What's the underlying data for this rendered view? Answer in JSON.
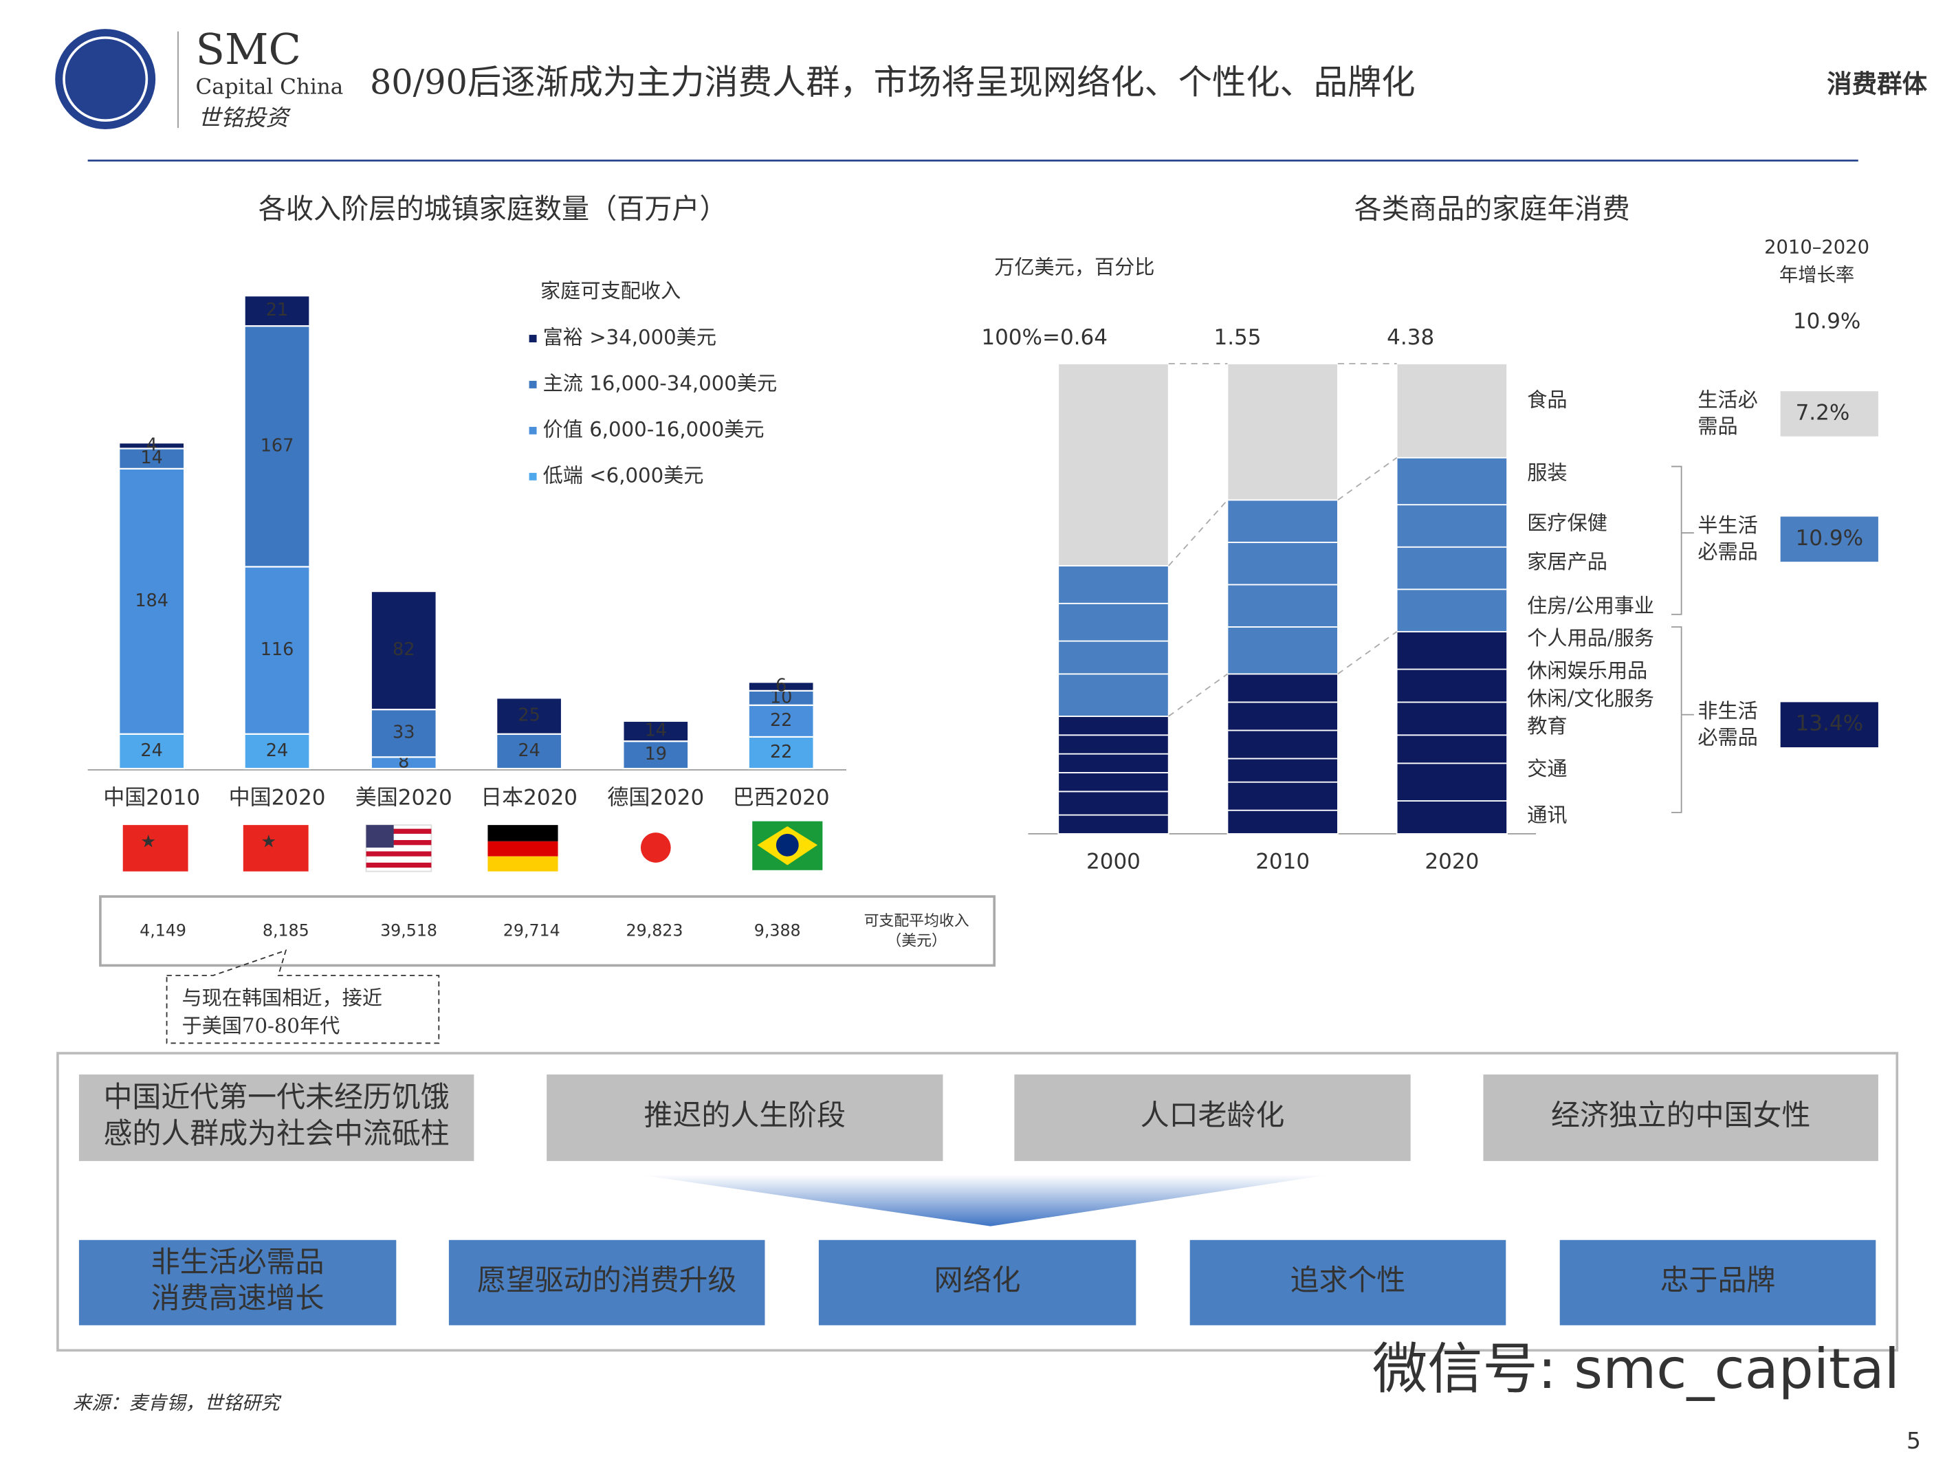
{
  "header": {
    "logo_name": "SMC",
    "logo_sub": "Capital China",
    "logo_cn": "世铭投资",
    "title": "80/90后逐渐成为主力消费人群，市场将呈现网络化、个性化、品牌化",
    "section": "消费群体"
  },
  "chart_data": [
    {
      "type": "stacked_bar",
      "title": "各收入阶层的城镇家庭数量（百万户）",
      "legend_title": "家庭可支配收入",
      "categories": [
        "中国2010",
        "中国2020",
        "美国2020",
        "日本2020",
        "德国2020",
        "巴西2020"
      ],
      "series": [
        {
          "name": "低端 <6,000美元",
          "color": "#4fa8ec",
          "values": [
            24,
            24,
            null,
            null,
            null,
            22
          ]
        },
        {
          "name": "价值 6,000-16,000美元",
          "color": "#4a8fdc",
          "values": [
            184,
            116,
            8,
            null,
            null,
            22
          ]
        },
        {
          "name": "主流 16,000-34,000美元",
          "color": "#3d77c0",
          "values": [
            14,
            167,
            33,
            24,
            19,
            10
          ]
        },
        {
          "name": "富裕 >34,000美元",
          "color": "#0f1f63",
          "values": [
            4,
            21,
            82,
            25,
            14,
            6
          ]
        }
      ],
      "ylim": [
        0,
        340
      ],
      "income_title": [
        "可支配平均收入",
        "（美元）"
      ],
      "incomes": [
        "4,149",
        "8,185",
        "39,518",
        "29,714",
        "29,823",
        "9,388"
      ],
      "annotation": [
        "与现在韩国相近，接近",
        "于美国70-80年代"
      ]
    },
    {
      "type": "stacked_bar_100",
      "title": "各类商品的家庭年消费",
      "unit": "万亿美元，百分比",
      "categories": [
        "2000",
        "2010",
        "2020"
      ],
      "totals": [
        "100%=0.64",
        "1.55",
        "4.38"
      ],
      "series": [
        {
          "name": "食品",
          "color": "#d9d9d9",
          "values": [
            43,
            29,
            20
          ]
        },
        {
          "name": "服装",
          "color": "#4a7fc1",
          "values": [
            8,
            9,
            10
          ]
        },
        {
          "name": "医疗保健",
          "color": "#4a7fc1",
          "values": [
            8,
            9,
            9
          ]
        },
        {
          "name": "家居产品",
          "color": "#4a7fc1",
          "values": [
            7,
            9,
            9
          ]
        },
        {
          "name": "住房/公用事业",
          "color": "#4a7fc1",
          "values": [
            9,
            10,
            9
          ]
        },
        {
          "name": "个人用品/服务",
          "color": "#0d1b5e",
          "values": [
            4,
            6,
            8
          ]
        },
        {
          "name": "休闲娱乐用品",
          "color": "#0d1b5e",
          "values": [
            4,
            6,
            7
          ]
        },
        {
          "name": "休闲/文化服务",
          "color": "#0d1b5e",
          "values": [
            4,
            6,
            7
          ]
        },
        {
          "name": "教育",
          "color": "#0d1b5e",
          "values": [
            4,
            5,
            6
          ]
        },
        {
          "name": "交通",
          "color": "#0d1b5e",
          "values": [
            5,
            6,
            8
          ]
        },
        {
          "name": "通讯",
          "color": "#0d1b5e",
          "values": [
            4,
            5,
            7
          ]
        }
      ],
      "ylim": [
        0,
        100
      ],
      "growth_title": [
        "2010–2020",
        "年增长率"
      ],
      "total_growth": "10.9%",
      "groups": [
        {
          "name": [
            "生活必",
            "需品"
          ],
          "growth": "7.2%"
        },
        {
          "name": [
            "半生活",
            "必需品"
          ],
          "growth": "10.9%"
        },
        {
          "name": [
            "非生活",
            "必需品"
          ],
          "growth": "13.4%"
        }
      ]
    }
  ],
  "drivers": [
    [
      "中国近代第一代未经历饥饿",
      "感的人群成为社会中流砥柱"
    ],
    [
      "推迟的人生阶段"
    ],
    [
      "人口老龄化"
    ],
    [
      "经济独立的中国女性"
    ]
  ],
  "outcomes": [
    [
      "非生活必需品",
      "消费高速增长"
    ],
    [
      "愿望驱动的消费升级"
    ],
    [
      "网络化"
    ],
    [
      "追求个性"
    ],
    [
      "忠于品牌"
    ]
  ],
  "source": "来源：麦肯锡，世铭研究",
  "page": "5",
  "watermark": "微信号: smc_capital"
}
